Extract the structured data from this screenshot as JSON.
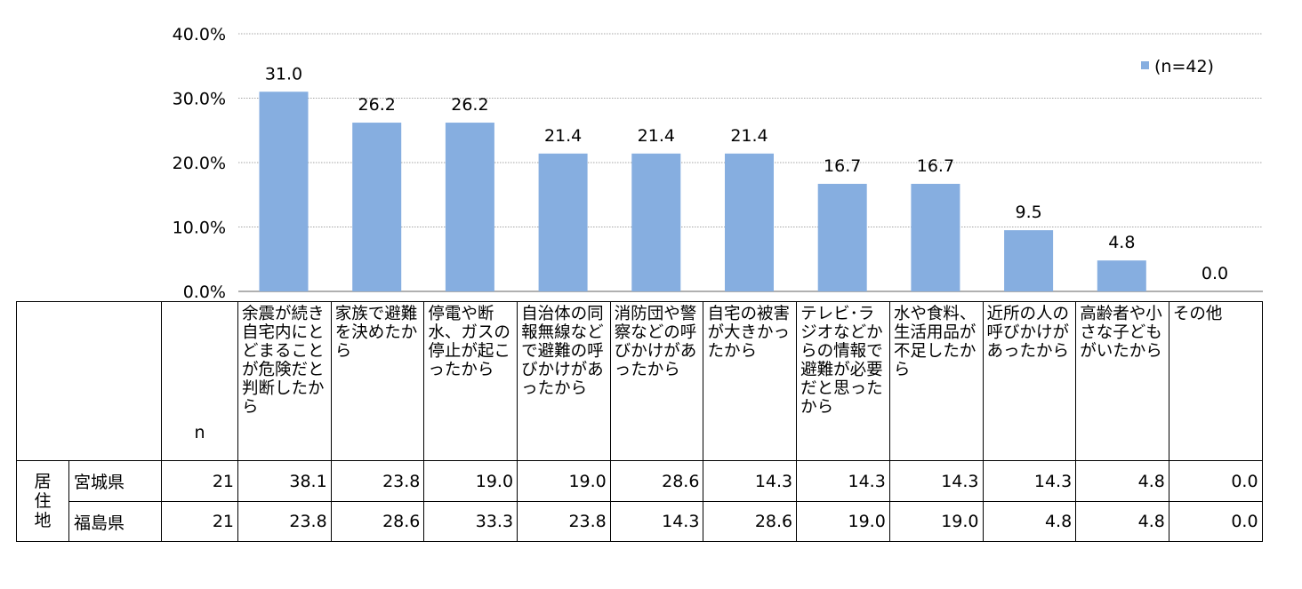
{
  "chart_data": {
    "type": "bar",
    "categories": [
      "余震が続き自宅内にとどまることが危険だと判断したから",
      "家族で避難を決めたから",
      "停電や断水、ガスの停止が起こったから",
      "自治体の同報無線などで避難の呼びかけがあったから",
      "消防団や警察などの呼びかけがあったから",
      "自宅の被害が大きかったから",
      "テレビ･ラジオなどからの情報で避難が必要だと思ったから",
      "水や食料、生活用品が不足したから",
      "近所の人の呼びかけがあったから",
      "高齢者や小さな子どもがいたから",
      "その他"
    ],
    "series": [
      {
        "name": "(n=42)",
        "values": [
          31.0,
          26.2,
          26.2,
          21.4,
          21.4,
          21.4,
          16.7,
          16.7,
          9.5,
          4.8,
          0.0
        ]
      }
    ],
    "data_labels": [
      "31.0",
      "26.2",
      "26.2",
      "21.4",
      "21.4",
      "21.4",
      "16.7",
      "16.7",
      "9.5",
      "4.8",
      "0.0"
    ],
    "yticks": [
      "0.0%",
      "10.0%",
      "20.0%",
      "30.0%",
      "40.0%"
    ],
    "ylim": [
      0,
      40
    ],
    "grid": true,
    "legend": "top-right",
    "bar_color": "#86aee0"
  },
  "table": {
    "n_label": "n",
    "group_label": "居住地",
    "rows": [
      {
        "name": "宮城県",
        "n": "21",
        "values": [
          "38.1",
          "23.8",
          "19.0",
          "19.0",
          "28.6",
          "14.3",
          "14.3",
          "14.3",
          "14.3",
          "4.8",
          "0.0"
        ]
      },
      {
        "name": "福島県",
        "n": "21",
        "values": [
          "23.8",
          "28.6",
          "33.3",
          "23.8",
          "14.3",
          "28.6",
          "19.0",
          "19.0",
          "4.8",
          "4.8",
          "0.0"
        ]
      }
    ]
  }
}
